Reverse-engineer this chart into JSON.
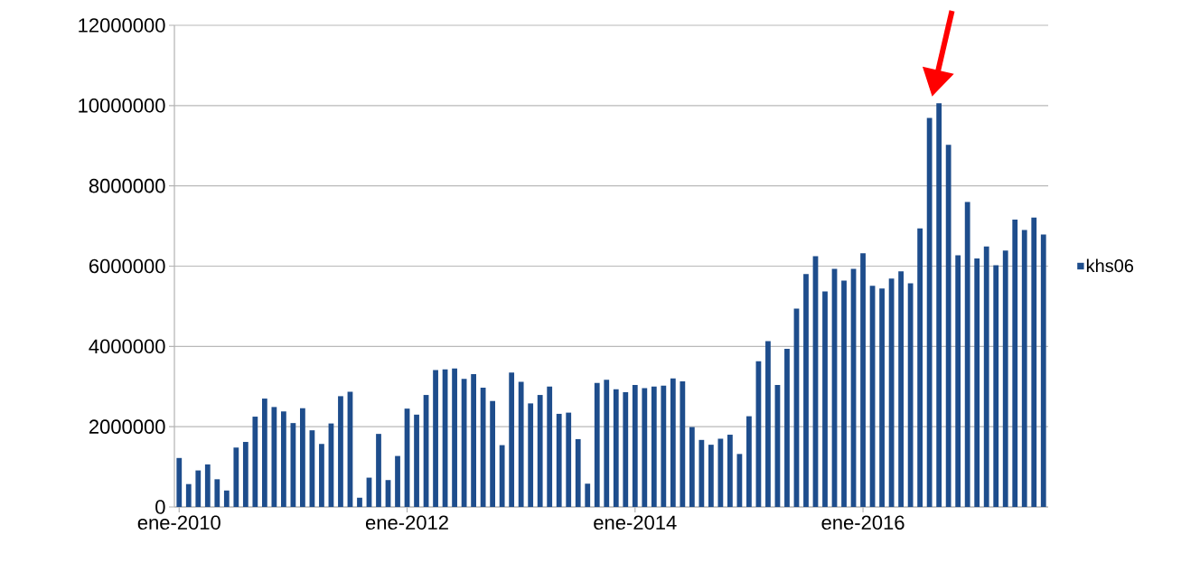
{
  "chart_data": {
    "type": "bar",
    "categories": [
      "ene-2010",
      null,
      null,
      null,
      null,
      null,
      null,
      null,
      null,
      null,
      null,
      null,
      null,
      null,
      null,
      null,
      null,
      null,
      null,
      null,
      null,
      null,
      null,
      null,
      "ene-2012",
      null,
      null,
      null,
      null,
      null,
      null,
      null,
      null,
      null,
      null,
      null,
      null,
      null,
      null,
      null,
      null,
      null,
      null,
      null,
      null,
      null,
      null,
      null,
      "ene-2014",
      null,
      null,
      null,
      null,
      null,
      null,
      null,
      null,
      null,
      null,
      null,
      null,
      null,
      null,
      null,
      null,
      null,
      null,
      null,
      null,
      null,
      null,
      null,
      "ene-2016",
      null,
      null,
      null,
      null,
      null,
      null,
      null,
      null,
      null,
      null,
      null,
      null,
      null,
      null,
      null,
      null,
      null,
      null,
      null
    ],
    "series": [
      {
        "name": "khs06",
        "color": "#1e4d8c",
        "values": [
          1220000,
          570000,
          910000,
          1060000,
          690000,
          410000,
          1480000,
          1620000,
          2250000,
          2700000,
          2490000,
          2380000,
          2090000,
          2460000,
          1910000,
          1570000,
          2080000,
          2760000,
          2870000,
          230000,
          730000,
          1820000,
          670000,
          1270000,
          2450000,
          2300000,
          2790000,
          3410000,
          3430000,
          3450000,
          3190000,
          3310000,
          2970000,
          2640000,
          1540000,
          3350000,
          3120000,
          2580000,
          2790000,
          3000000,
          2320000,
          2350000,
          1690000,
          580000,
          3090000,
          3170000,
          2930000,
          2860000,
          3040000,
          2960000,
          3000000,
          3020000,
          3200000,
          3130000,
          1990000,
          1670000,
          1550000,
          1700000,
          1800000,
          1320000,
          2260000,
          3630000,
          4130000,
          3040000,
          3940000,
          4940000,
          5800000,
          6250000,
          5370000,
          5930000,
          5640000,
          5930000,
          6320000,
          5510000,
          5440000,
          5690000,
          5870000,
          5570000,
          6940000,
          9690000,
          10060000,
          9020000,
          6270000,
          7600000,
          6190000,
          6490000,
          6020000,
          6390000,
          7160000,
          6900000,
          7210000,
          6790000
        ]
      }
    ],
    "ylim": [
      0,
      12000000
    ],
    "yticks": [
      0,
      2000000,
      4000000,
      6000000,
      8000000,
      10000000,
      12000000
    ],
    "grid": "y",
    "legend": "right"
  }
}
